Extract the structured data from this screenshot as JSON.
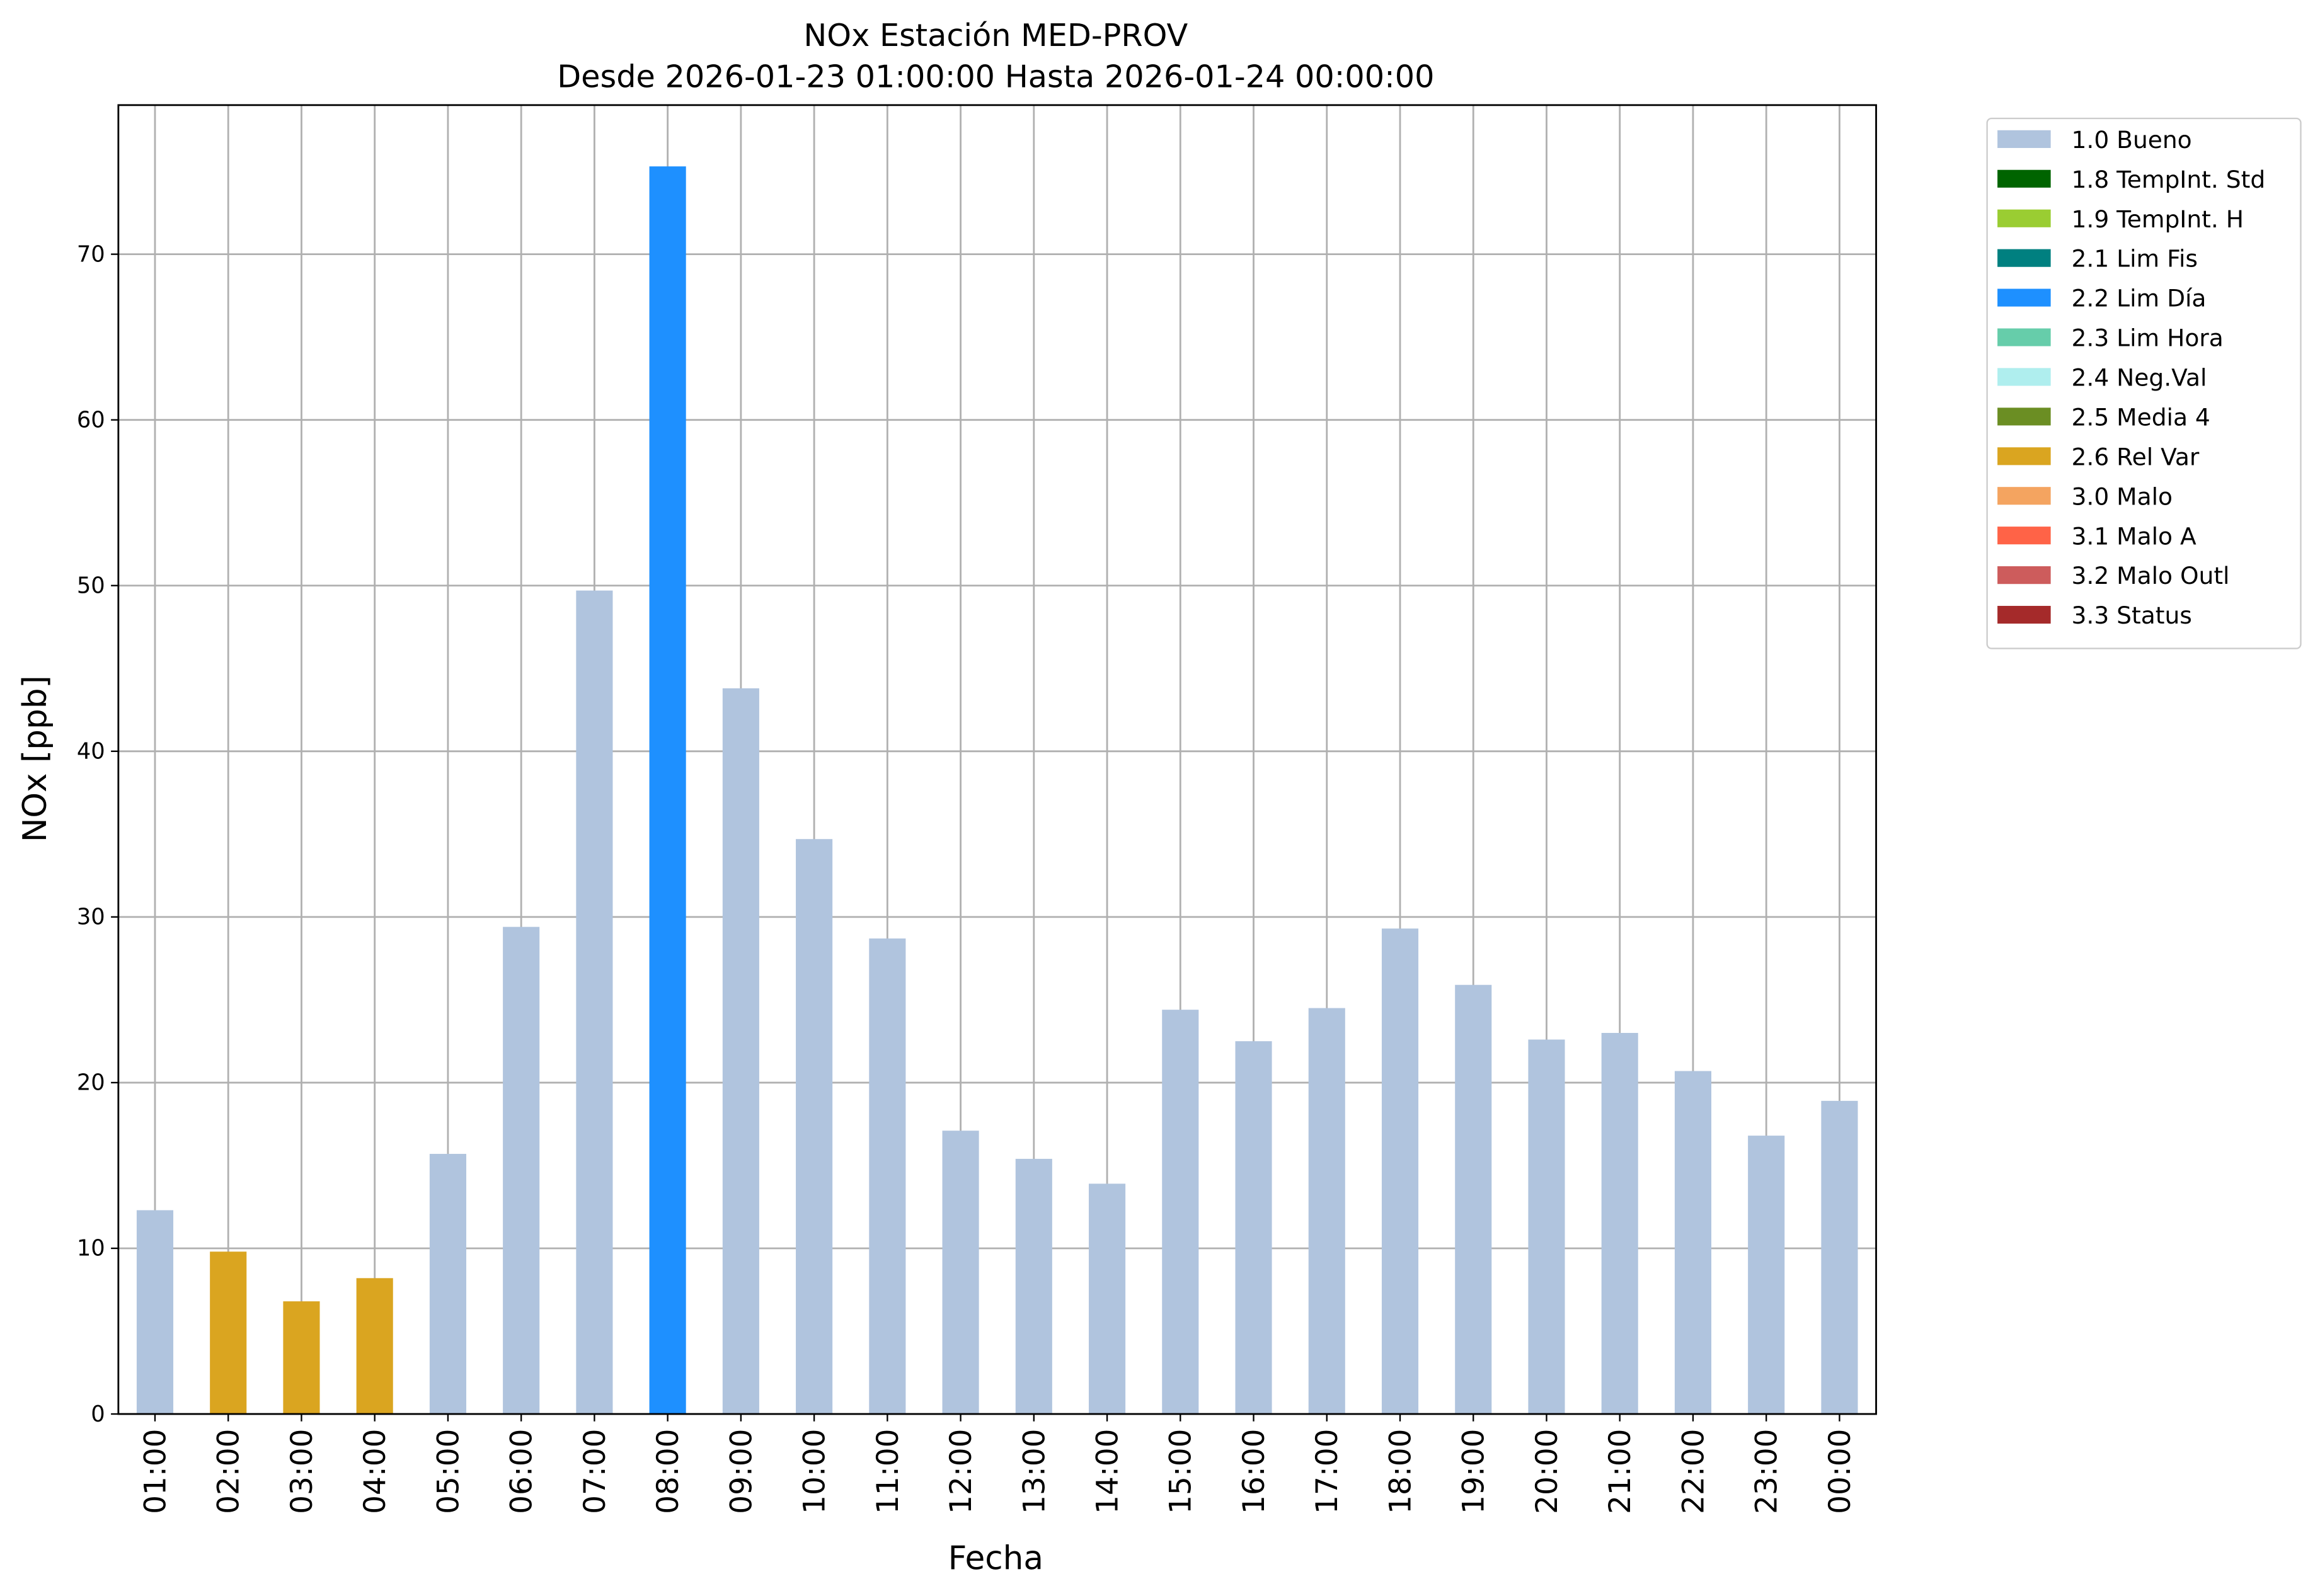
{
  "chart_data": {
    "type": "bar",
    "stacked": true,
    "title": "NOx Estación MED-PROV",
    "subtitle": "Desde 2026-01-23 01:00:00 Hasta 2026-01-24 00:00:00",
    "x_label": "Fecha",
    "y_label": "NOx [ppb]",
    "categories": [
      "01:00",
      "02:00",
      "03:00",
      "04:00",
      "05:00",
      "06:00",
      "07:00",
      "08:00",
      "09:00",
      "10:00",
      "11:00",
      "12:00",
      "13:00",
      "14:00",
      "15:00",
      "16:00",
      "17:00",
      "18:00",
      "19:00",
      "20:00",
      "21:00",
      "22:00",
      "23:00",
      "00:00"
    ],
    "series": [
      {
        "name": "1.0 Bueno",
        "color": "#b0c4de",
        "values": [
          12.3,
          null,
          null,
          null,
          15.7,
          29.4,
          49.7,
          null,
          43.8,
          34.7,
          28.7,
          17.1,
          15.4,
          13.9,
          24.4,
          22.5,
          24.5,
          29.3,
          25.9,
          22.6,
          23.0,
          20.7,
          16.8,
          18.9
        ]
      },
      {
        "name": "1.8 TempInt. Std",
        "color": "#006400",
        "values": [
          null,
          null,
          null,
          null,
          null,
          null,
          null,
          null,
          null,
          null,
          null,
          null,
          null,
          null,
          null,
          null,
          null,
          null,
          null,
          null,
          null,
          null,
          null,
          null
        ]
      },
      {
        "name": "1.9 TempInt. H",
        "color": "#9acd32",
        "values": [
          null,
          null,
          null,
          null,
          null,
          null,
          null,
          null,
          null,
          null,
          null,
          null,
          null,
          null,
          null,
          null,
          null,
          null,
          null,
          null,
          null,
          null,
          null,
          null
        ]
      },
      {
        "name": "2.1 Lim Fis",
        "color": "#008080",
        "values": [
          null,
          null,
          null,
          null,
          null,
          null,
          null,
          null,
          null,
          null,
          null,
          null,
          null,
          null,
          null,
          null,
          null,
          null,
          null,
          null,
          null,
          null,
          null,
          null
        ]
      },
      {
        "name": "2.2 Lim Día",
        "color": "#1e90ff",
        "values": [
          null,
          null,
          null,
          null,
          null,
          null,
          null,
          75.3,
          null,
          null,
          null,
          null,
          null,
          null,
          null,
          null,
          null,
          null,
          null,
          null,
          null,
          null,
          null,
          null
        ]
      },
      {
        "name": "2.3 Lim Hora",
        "color": "#66cdaa",
        "values": [
          null,
          null,
          null,
          null,
          null,
          null,
          null,
          null,
          null,
          null,
          null,
          null,
          null,
          null,
          null,
          null,
          null,
          null,
          null,
          null,
          null,
          null,
          null,
          null
        ]
      },
      {
        "name": "2.4 Neg.Val",
        "color": "#afeeee",
        "values": [
          null,
          null,
          null,
          null,
          null,
          null,
          null,
          null,
          null,
          null,
          null,
          null,
          null,
          null,
          null,
          null,
          null,
          null,
          null,
          null,
          null,
          null,
          null,
          null
        ]
      },
      {
        "name": "2.5 Media 4",
        "color": "#6b8e23",
        "values": [
          null,
          null,
          null,
          null,
          null,
          null,
          null,
          null,
          null,
          null,
          null,
          null,
          null,
          null,
          null,
          null,
          null,
          null,
          null,
          null,
          null,
          null,
          null,
          null
        ]
      },
      {
        "name": "2.6 Rel Var",
        "color": "#daa520",
        "values": [
          null,
          9.8,
          6.8,
          8.2,
          null,
          null,
          null,
          null,
          null,
          null,
          null,
          null,
          null,
          null,
          null,
          null,
          null,
          null,
          null,
          null,
          null,
          null,
          null,
          null
        ]
      },
      {
        "name": "3.0 Malo",
        "color": "#f4a460",
        "values": [
          null,
          null,
          null,
          null,
          null,
          null,
          null,
          null,
          null,
          null,
          null,
          null,
          null,
          null,
          null,
          null,
          null,
          null,
          null,
          null,
          null,
          null,
          null,
          null
        ]
      },
      {
        "name": "3.1 Malo A",
        "color": "#ff6347",
        "values": [
          null,
          null,
          null,
          null,
          null,
          null,
          null,
          null,
          null,
          null,
          null,
          null,
          null,
          null,
          null,
          null,
          null,
          null,
          null,
          null,
          null,
          null,
          null,
          null
        ]
      },
      {
        "name": "3.2 Malo Outl",
        "color": "#cd5c5c",
        "values": [
          null,
          null,
          null,
          null,
          null,
          null,
          null,
          null,
          null,
          null,
          null,
          null,
          null,
          null,
          null,
          null,
          null,
          null,
          null,
          null,
          null,
          null,
          null,
          null
        ]
      },
      {
        "name": "3.3 Status",
        "color": "#a52a2a",
        "values": [
          null,
          null,
          null,
          null,
          null,
          null,
          null,
          null,
          null,
          null,
          null,
          null,
          null,
          null,
          null,
          null,
          null,
          null,
          null,
          null,
          null,
          null,
          null,
          null
        ]
      }
    ],
    "ylim": [
      0,
      79
    ],
    "yticks": [
      0,
      10,
      20,
      30,
      40,
      50,
      60,
      70
    ],
    "grid": true,
    "legend": "outside-right"
  }
}
